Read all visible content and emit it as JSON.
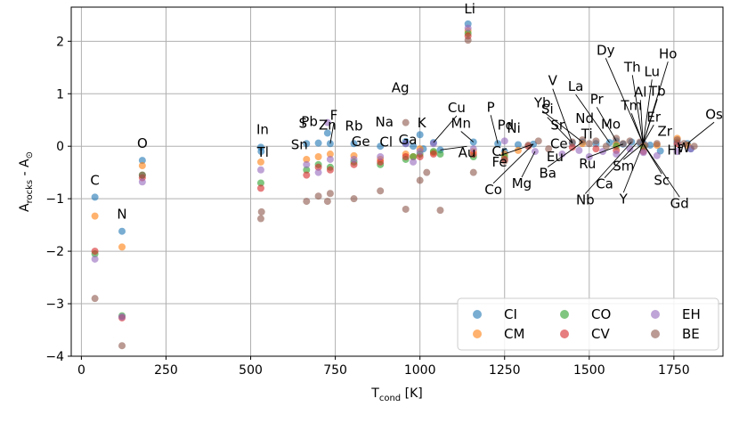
{
  "chart_data": {
    "type": "scatter",
    "xlabel": "T",
    "xlabel_sub": "cond",
    "xlabel_unit": " [K]",
    "ylabel": "A",
    "ylabel_sub": "rocks",
    "ylabel_mid": " - A",
    "ylabel_sun": "⊙",
    "xlim": [
      -30,
      1895
    ],
    "ylim": [
      -4,
      2.65
    ],
    "xticks": [
      0,
      250,
      500,
      750,
      1000,
      1250,
      1500,
      1750
    ],
    "yticks": [
      -4,
      -3,
      -2,
      -1,
      0,
      1,
      2
    ],
    "grid": true,
    "legend_position": "lower-right",
    "series": [
      {
        "name": "CI",
        "color": "#1f77b4",
        "points": [
          [
            40,
            -0.97
          ],
          [
            120,
            -1.62
          ],
          [
            180,
            -0.27
          ],
          [
            530,
            -0.02
          ],
          [
            531,
            -0.1
          ],
          [
            665,
            0.05
          ],
          [
            700,
            0.06
          ],
          [
            727,
            0.25
          ],
          [
            735,
            0.05
          ],
          [
            805,
            0.05
          ],
          [
            883,
            0.0
          ],
          [
            958,
            0.09
          ],
          [
            958,
            0.05
          ],
          [
            980,
            0.0
          ],
          [
            1000,
            0.22
          ],
          [
            1010,
            -0.05
          ],
          [
            1040,
            0.07
          ],
          [
            1060,
            -0.07
          ],
          [
            1142,
            2.33
          ],
          [
            1158,
            0.08
          ],
          [
            1230,
            0.05
          ],
          [
            1250,
            -0.1
          ],
          [
            1290,
            0.03
          ],
          [
            1335,
            0.04
          ],
          [
            1450,
            0.06
          ],
          [
            1480,
            0.08
          ],
          [
            1520,
            0.05
          ],
          [
            1560,
            0.07
          ],
          [
            1580,
            0.1
          ],
          [
            1600,
            0.04
          ],
          [
            1625,
            0.08
          ],
          [
            1650,
            0.06
          ],
          [
            1660,
            0.05
          ],
          [
            1680,
            0.02
          ],
          [
            1710,
            -0.09
          ],
          [
            1760,
            0.08
          ],
          [
            1790,
            0.05
          ],
          [
            1800,
            -0.05
          ]
        ]
      },
      {
        "name": "CM",
        "color": "#ff7f0e",
        "points": [
          [
            40,
            -1.33
          ],
          [
            120,
            -1.92
          ],
          [
            180,
            -0.37
          ],
          [
            530,
            -0.3
          ],
          [
            665,
            -0.25
          ],
          [
            700,
            -0.2
          ],
          [
            735,
            -0.15
          ],
          [
            805,
            -0.18
          ],
          [
            883,
            -0.25
          ],
          [
            958,
            -0.15
          ],
          [
            980,
            -0.2
          ],
          [
            1000,
            -0.05
          ],
          [
            1040,
            -0.12
          ],
          [
            1142,
            2.2
          ],
          [
            1158,
            -0.1
          ],
          [
            1250,
            -0.15
          ],
          [
            1290,
            -0.08
          ],
          [
            1480,
            0.05
          ],
          [
            1580,
            0.03
          ],
          [
            1660,
            0.0
          ],
          [
            1700,
            0.02
          ],
          [
            1760,
            0.15
          ],
          [
            1790,
            0.02
          ]
        ]
      },
      {
        "name": "CO",
        "color": "#2ca02c",
        "points": [
          [
            40,
            -2.05
          ],
          [
            120,
            -3.23
          ],
          [
            180,
            -0.55
          ],
          [
            530,
            -0.7
          ],
          [
            665,
            -0.45
          ],
          [
            700,
            -0.35
          ],
          [
            735,
            -0.4
          ],
          [
            805,
            -0.3
          ],
          [
            883,
            -0.35
          ],
          [
            958,
            -0.25
          ],
          [
            980,
            -0.2
          ],
          [
            1000,
            -0.15
          ],
          [
            1040,
            -0.1
          ],
          [
            1060,
            -0.15
          ],
          [
            1142,
            2.15
          ],
          [
            1158,
            -0.2
          ],
          [
            1250,
            -0.2
          ],
          [
            1580,
            0.0
          ],
          [
            1660,
            -0.02
          ]
        ]
      },
      {
        "name": "CV",
        "color": "#d62728",
        "points": [
          [
            40,
            -2.0
          ],
          [
            120,
            -3.27
          ],
          [
            180,
            -0.6
          ],
          [
            530,
            -0.8
          ],
          [
            665,
            -0.55
          ],
          [
            700,
            -0.4
          ],
          [
            735,
            -0.45
          ],
          [
            805,
            -0.35
          ],
          [
            883,
            -0.3
          ],
          [
            958,
            -0.2
          ],
          [
            1000,
            -0.2
          ],
          [
            1040,
            -0.15
          ],
          [
            1142,
            2.1
          ],
          [
            1158,
            -0.15
          ],
          [
            1250,
            -0.25
          ],
          [
            1320,
            0.0
          ],
          [
            1450,
            -0.02
          ],
          [
            1520,
            -0.05
          ],
          [
            1580,
            -0.08
          ],
          [
            1660,
            -0.1
          ],
          [
            1760,
            0.05
          ]
        ]
      },
      {
        "name": "EH",
        "color": "#9467bd",
        "points": [
          [
            40,
            -2.15
          ],
          [
            120,
            -3.25
          ],
          [
            180,
            -0.68
          ],
          [
            530,
            -0.45
          ],
          [
            665,
            -0.35
          ],
          [
            700,
            -0.5
          ],
          [
            727,
            0.45
          ],
          [
            735,
            -0.25
          ],
          [
            805,
            -0.25
          ],
          [
            883,
            -0.2
          ],
          [
            958,
            0.05
          ],
          [
            980,
            -0.3
          ],
          [
            1000,
            -0.1
          ],
          [
            1040,
            0.05
          ],
          [
            1142,
            2.25
          ],
          [
            1158,
            -0.05
          ],
          [
            1250,
            0.1
          ],
          [
            1340,
            -0.1
          ],
          [
            1420,
            -0.15
          ],
          [
            1470,
            -0.08
          ],
          [
            1500,
            -0.2
          ],
          [
            1540,
            -0.1
          ],
          [
            1580,
            -0.15
          ],
          [
            1620,
            -0.05
          ],
          [
            1660,
            -0.12
          ],
          [
            1700,
            -0.18
          ],
          [
            1760,
            -0.1
          ],
          [
            1800,
            -0.05
          ]
        ]
      },
      {
        "name": "BE",
        "color": "#8c564b",
        "points": [
          [
            40,
            -2.9
          ],
          [
            120,
            -3.8
          ],
          [
            180,
            -0.55
          ],
          [
            530,
            -1.38
          ],
          [
            532,
            -1.25
          ],
          [
            665,
            -1.05
          ],
          [
            700,
            -0.95
          ],
          [
            727,
            -1.05
          ],
          [
            735,
            -0.9
          ],
          [
            805,
            -1.0
          ],
          [
            883,
            -0.85
          ],
          [
            958,
            -1.2
          ],
          [
            958,
            0.45
          ],
          [
            1000,
            -0.65
          ],
          [
            1020,
            -0.5
          ],
          [
            1060,
            -1.22
          ],
          [
            1142,
            2.02
          ],
          [
            1158,
            -0.5
          ],
          [
            1250,
            -0.28
          ],
          [
            1320,
            0.02
          ],
          [
            1350,
            0.1
          ],
          [
            1380,
            -0.05
          ],
          [
            1450,
            0.08
          ],
          [
            1480,
            0.12
          ],
          [
            1500,
            0.05
          ],
          [
            1520,
            0.1
          ],
          [
            1550,
            0.0
          ],
          [
            1580,
            0.15
          ],
          [
            1600,
            0.05
          ],
          [
            1620,
            0.1
          ],
          [
            1650,
            0.08
          ],
          [
            1665,
            0.02
          ],
          [
            1700,
            0.05
          ],
          [
            1760,
            0.12
          ],
          [
            1780,
            0.05
          ],
          [
            1810,
            0.0
          ]
        ]
      }
    ],
    "labels": [
      {
        "text": "C",
        "x": 40,
        "y": -0.97
      },
      {
        "text": "N",
        "x": 120,
        "y": -1.62
      },
      {
        "text": "O",
        "x": 180,
        "y": -0.27
      },
      {
        "text": "In",
        "x": 530,
        "y": -0.02
      },
      {
        "text": "Tl",
        "x": 531,
        "y": -0.1
      },
      {
        "text": "S",
        "x": 665,
        "y": 0.05
      },
      {
        "text": "Sn",
        "x": 665,
        "y": 0.05
      },
      {
        "text": "Pb",
        "x": 700,
        "y": 0.06
      },
      {
        "text": "F",
        "x": 735,
        "y": 0.05
      },
      {
        "text": "Zn",
        "x": 727,
        "y": 0.25
      },
      {
        "text": "Rb",
        "x": 805,
        "y": 0.05
      },
      {
        "text": "Ge",
        "x": 883,
        "y": 0.0
      },
      {
        "text": "Na",
        "x": 958,
        "y": 0.09
      },
      {
        "text": "Ag",
        "x": 958,
        "y": 0.45
      },
      {
        "text": "Cl",
        "x": 958,
        "y": 0.05
      },
      {
        "text": "Ga",
        "x": 980,
        "y": 0.0
      },
      {
        "text": "K",
        "x": 1000,
        "y": 0.22
      },
      {
        "text": "Cu",
        "x": 1040,
        "y": 0.07
      },
      {
        "text": "Au",
        "x": 1060,
        "y": -0.07
      },
      {
        "text": "Li",
        "x": 1142,
        "y": 2.33
      },
      {
        "text": "Mn",
        "x": 1158,
        "y": 0.08
      },
      {
        "text": "P",
        "x": 1230,
        "y": 0.05
      },
      {
        "text": "Cr",
        "x": 1250,
        "y": -0.1
      },
      {
        "text": "Pd",
        "x": 1290,
        "y": 0.03
      },
      {
        "text": "Ni",
        "x": 1335,
        "y": 0.04
      },
      {
        "text": "Fe",
        "x": 1335,
        "y": 0.04
      },
      {
        "text": "Co",
        "x": 1335,
        "y": 0.04
      },
      {
        "text": "Mg",
        "x": 1340,
        "y": -0.1
      },
      {
        "text": "Eu",
        "x": 1420,
        "y": -0.15
      },
      {
        "text": "Si",
        "x": 1450,
        "y": 0.06
      },
      {
        "text": "V",
        "x": 1450,
        "y": 0.06
      },
      {
        "text": "Sr",
        "x": 1480,
        "y": 0.08
      },
      {
        "text": "Ba",
        "x": 1480,
        "y": 0.08
      },
      {
        "text": "Yb",
        "x": 1480,
        "y": 0.08
      },
      {
        "text": "Ce",
        "x": 1500,
        "y": 0.05
      },
      {
        "text": "La",
        "x": 1560,
        "y": 0.07
      },
      {
        "text": "Nd",
        "x": 1560,
        "y": 0.07
      },
      {
        "text": "Ti",
        "x": 1580,
        "y": 0.1
      },
      {
        "text": "Pr",
        "x": 1580,
        "y": 0.1
      },
      {
        "text": "Mo",
        "x": 1590,
        "y": 0.1
      },
      {
        "text": "Ru",
        "x": 1600,
        "y": 0.04
      },
      {
        "text": "Nb",
        "x": 1625,
        "y": 0.08
      },
      {
        "text": "Ca",
        "x": 1640,
        "y": 0.06
      },
      {
        "text": "Dy",
        "x": 1659,
        "y": 0.05
      },
      {
        "text": "Th",
        "x": 1659,
        "y": 0.05
      },
      {
        "text": "Al",
        "x": 1659,
        "y": 0.05
      },
      {
        "text": "Tm",
        "x": 1659,
        "y": 0.05
      },
      {
        "text": "Sm",
        "x": 1659,
        "y": 0.05
      },
      {
        "text": "Y",
        "x": 1659,
        "y": 0.05
      },
      {
        "text": "Lu",
        "x": 1659,
        "y": 0.05
      },
      {
        "text": "Tb",
        "x": 1659,
        "y": 0.05
      },
      {
        "text": "Ho",
        "x": 1659,
        "y": 0.05
      },
      {
        "text": "Er",
        "x": 1659,
        "y": 0.05
      },
      {
        "text": "Sc",
        "x": 1659,
        "y": 0.05
      },
      {
        "text": "Gd",
        "x": 1659,
        "y": 0.05
      },
      {
        "text": "Hf",
        "x": 1710,
        "y": -0.09
      },
      {
        "text": "Zr",
        "x": 1760,
        "y": 0.08
      },
      {
        "text": "Os",
        "x": 1790,
        "y": 0.05
      },
      {
        "text": "W",
        "x": 1800,
        "y": -0.05
      }
    ]
  }
}
